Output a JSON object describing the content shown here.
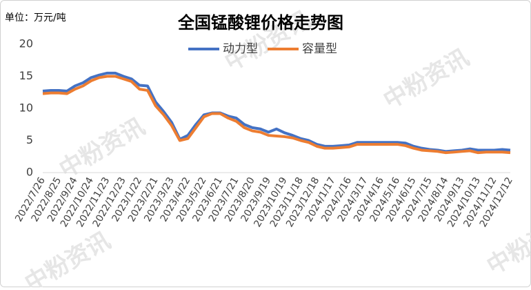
{
  "chart_data": {
    "type": "line",
    "title": "全国锰酸锂价格走势图",
    "subtitle": "单位：万元/吨",
    "watermark": "中粉资讯",
    "categories": [
      "2022/7/26",
      null,
      "2022/8/25",
      null,
      "2022/9/24",
      null,
      "2022/10/24",
      null,
      "2022/11/23",
      null,
      "2022/12/23",
      null,
      "2023/1/22",
      null,
      "2023/2/21",
      null,
      "2023/3/23",
      null,
      "2023/4/22",
      null,
      "2023/5/22",
      null,
      "2023/6/21",
      null,
      "2023/7/21",
      null,
      "2023/8/20",
      null,
      "2023/9/19",
      null,
      "2023/10/19",
      null,
      "2023/11/18",
      null,
      "2023/12/18",
      null,
      "2024/1/17",
      null,
      "2024/2/16",
      null,
      "2024/3/17",
      null,
      "2024/4/16",
      null,
      "2024/5/16",
      null,
      "2024/6/15",
      null,
      "2024/7/15",
      null,
      "2024/8/14",
      null,
      "2024/9/13",
      null,
      "2024/10/13",
      null,
      "2024/11/12",
      null,
      "2024/12/12"
    ],
    "series": [
      {
        "name": "动力型",
        "color": "#4472c4",
        "values": [
          12.7,
          12.8,
          12.8,
          12.7,
          13.5,
          14.0,
          14.8,
          15.2,
          15.5,
          15.5,
          15.0,
          14.6,
          13.6,
          13.5,
          11.0,
          9.5,
          7.8,
          5.2,
          5.8,
          7.5,
          9.0,
          9.3,
          9.3,
          8.8,
          8.5,
          7.5,
          7.0,
          6.8,
          6.3,
          6.8,
          6.2,
          5.8,
          5.3,
          5.0,
          4.4,
          4.1,
          4.1,
          4.2,
          4.3,
          4.7,
          4.7,
          4.7,
          4.7,
          4.7,
          4.7,
          4.6,
          4.1,
          3.8,
          3.6,
          3.5,
          3.3,
          3.4,
          3.5,
          3.7,
          3.5,
          3.5,
          3.5,
          3.6,
          3.5
        ]
      },
      {
        "name": "容量型",
        "color": "#ed7d31",
        "values": [
          12.3,
          12.4,
          12.4,
          12.3,
          13.0,
          13.5,
          14.3,
          14.8,
          15.0,
          15.0,
          14.6,
          14.2,
          13.0,
          12.8,
          10.4,
          9.0,
          7.3,
          5.0,
          5.3,
          7.0,
          8.7,
          9.2,
          9.2,
          8.5,
          8.0,
          7.0,
          6.5,
          6.3,
          5.8,
          5.7,
          5.6,
          5.4,
          5.0,
          4.7,
          4.1,
          3.8,
          3.8,
          3.9,
          4.0,
          4.4,
          4.4,
          4.4,
          4.4,
          4.4,
          4.4,
          4.2,
          3.8,
          3.5,
          3.4,
          3.3,
          3.1,
          3.2,
          3.3,
          3.4,
          3.1,
          3.2,
          3.2,
          3.2,
          3.1
        ]
      }
    ],
    "ylim": [
      0,
      20
    ],
    "yticks": [
      0,
      5,
      10,
      15,
      20
    ],
    "grid": false
  }
}
